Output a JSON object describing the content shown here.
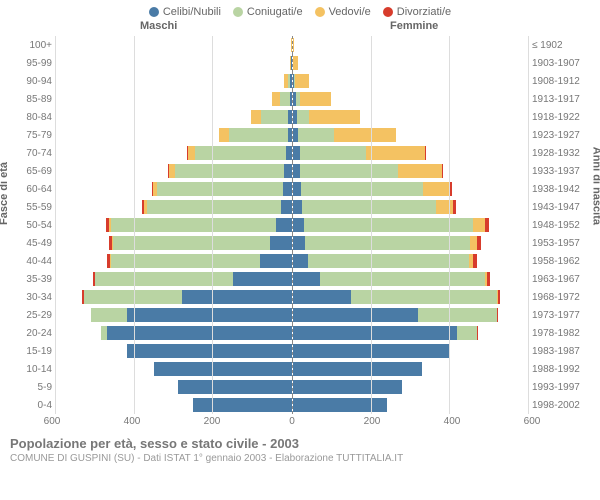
{
  "legend": [
    {
      "label": "Celibi/Nubili",
      "color": "#4a7ba6"
    },
    {
      "label": "Coniugati/e",
      "color": "#b9d4a3"
    },
    {
      "label": "Vedovi/e",
      "color": "#f4c262"
    },
    {
      "label": "Divorziati/e",
      "color": "#d73c2c"
    }
  ],
  "header_male": "Maschi",
  "header_female": "Femmine",
  "ylabel_left": "Fasce di età",
  "ylabel_right": "Anni di nascita",
  "xmax": 600,
  "xticks": [
    600,
    400,
    200,
    0,
    200,
    400,
    600
  ],
  "colors": {
    "single": "#4a7ba6",
    "married": "#b9d4a3",
    "widowed": "#f4c262",
    "divorced": "#d73c2c",
    "grid": "#dddddd",
    "axis": "#888888",
    "bg": "#ffffff"
  },
  "rows": [
    {
      "age": "100+",
      "year": "≤ 1902",
      "m": {
        "s": 0,
        "m": 0,
        "w": 2,
        "d": 0
      },
      "f": {
        "s": 0,
        "m": 0,
        "w": 3,
        "d": 0
      }
    },
    {
      "age": "95-99",
      "year": "1903-1907",
      "m": {
        "s": 1,
        "m": 0,
        "w": 4,
        "d": 0
      },
      "f": {
        "s": 1,
        "m": 0,
        "w": 12,
        "d": 0
      }
    },
    {
      "age": "90-94",
      "year": "1908-1912",
      "m": {
        "s": 3,
        "m": 5,
        "w": 10,
        "d": 0
      },
      "f": {
        "s": 4,
        "m": 3,
        "w": 35,
        "d": 0
      }
    },
    {
      "age": "85-89",
      "year": "1913-1917",
      "m": {
        "s": 5,
        "m": 25,
        "w": 20,
        "d": 0
      },
      "f": {
        "s": 8,
        "m": 10,
        "w": 80,
        "d": 0
      }
    },
    {
      "age": "80-84",
      "year": "1918-1922",
      "m": {
        "s": 8,
        "m": 70,
        "w": 25,
        "d": 0
      },
      "f": {
        "s": 12,
        "m": 30,
        "w": 130,
        "d": 0
      }
    },
    {
      "age": "75-79",
      "year": "1923-1927",
      "m": {
        "s": 10,
        "m": 150,
        "w": 25,
        "d": 0
      },
      "f": {
        "s": 15,
        "m": 90,
        "w": 160,
        "d": 0
      }
    },
    {
      "age": "70-74",
      "year": "1928-1932",
      "m": {
        "s": 15,
        "m": 230,
        "w": 20,
        "d": 2
      },
      "f": {
        "s": 18,
        "m": 170,
        "w": 150,
        "d": 2
      }
    },
    {
      "age": "65-69",
      "year": "1933-1937",
      "m": {
        "s": 18,
        "m": 280,
        "w": 15,
        "d": 3
      },
      "f": {
        "s": 20,
        "m": 250,
        "w": 110,
        "d": 3
      }
    },
    {
      "age": "60-64",
      "year": "1938-1942",
      "m": {
        "s": 22,
        "m": 320,
        "w": 10,
        "d": 4
      },
      "f": {
        "s": 22,
        "m": 310,
        "w": 70,
        "d": 4
      }
    },
    {
      "age": "55-59",
      "year": "1943-1947",
      "m": {
        "s": 28,
        "m": 340,
        "w": 8,
        "d": 5
      },
      "f": {
        "s": 25,
        "m": 340,
        "w": 45,
        "d": 6
      }
    },
    {
      "age": "50-54",
      "year": "1948-1952",
      "m": {
        "s": 40,
        "m": 420,
        "w": 5,
        "d": 8
      },
      "f": {
        "s": 30,
        "m": 430,
        "w": 30,
        "d": 10
      }
    },
    {
      "age": "45-49",
      "year": "1953-1957",
      "m": {
        "s": 55,
        "m": 400,
        "w": 3,
        "d": 8
      },
      "f": {
        "s": 32,
        "m": 420,
        "w": 18,
        "d": 10
      }
    },
    {
      "age": "40-44",
      "year": "1958-1962",
      "m": {
        "s": 80,
        "m": 380,
        "w": 2,
        "d": 7
      },
      "f": {
        "s": 40,
        "m": 410,
        "w": 10,
        "d": 9
      }
    },
    {
      "age": "35-39",
      "year": "1963-1967",
      "m": {
        "s": 150,
        "m": 350,
        "w": 1,
        "d": 6
      },
      "f": {
        "s": 70,
        "m": 420,
        "w": 5,
        "d": 8
      }
    },
    {
      "age": "30-34",
      "year": "1968-1972",
      "m": {
        "s": 280,
        "m": 250,
        "w": 0,
        "d": 4
      },
      "f": {
        "s": 150,
        "m": 370,
        "w": 3,
        "d": 6
      }
    },
    {
      "age": "25-29",
      "year": "1973-1977",
      "m": {
        "s": 420,
        "m": 90,
        "w": 0,
        "d": 2
      },
      "f": {
        "s": 320,
        "m": 200,
        "w": 1,
        "d": 3
      }
    },
    {
      "age": "20-24",
      "year": "1978-1982",
      "m": {
        "s": 470,
        "m": 15,
        "w": 0,
        "d": 0
      },
      "f": {
        "s": 420,
        "m": 50,
        "w": 0,
        "d": 1
      }
    },
    {
      "age": "15-19",
      "year": "1983-1987",
      "m": {
        "s": 420,
        "m": 0,
        "w": 0,
        "d": 0
      },
      "f": {
        "s": 400,
        "m": 2,
        "w": 0,
        "d": 0
      }
    },
    {
      "age": "10-14",
      "year": "1988-1992",
      "m": {
        "s": 350,
        "m": 0,
        "w": 0,
        "d": 0
      },
      "f": {
        "s": 330,
        "m": 0,
        "w": 0,
        "d": 0
      }
    },
    {
      "age": "5-9",
      "year": "1993-1997",
      "m": {
        "s": 290,
        "m": 0,
        "w": 0,
        "d": 0
      },
      "f": {
        "s": 280,
        "m": 0,
        "w": 0,
        "d": 0
      }
    },
    {
      "age": "0-4",
      "year": "1998-2002",
      "m": {
        "s": 250,
        "m": 0,
        "w": 0,
        "d": 0
      },
      "f": {
        "s": 240,
        "m": 0,
        "w": 0,
        "d": 0
      }
    }
  ],
  "footer_title": "Popolazione per età, sesso e stato civile - 2003",
  "footer_sub": "COMUNE DI GUSPINI (SU) - Dati ISTAT 1° gennaio 2003 - Elaborazione TUTTITALIA.IT"
}
